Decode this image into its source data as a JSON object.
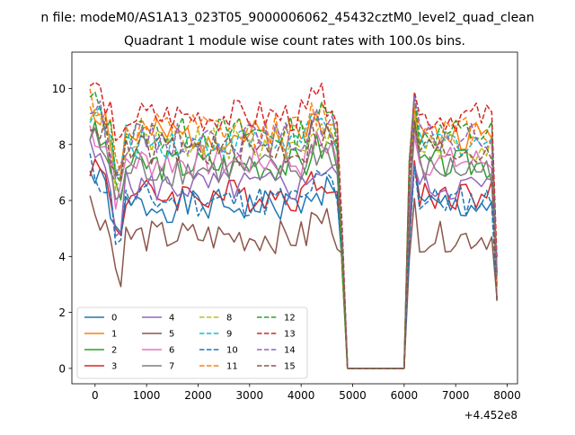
{
  "figure": {
    "suptitle": "n file: modeM0/AS1A13_023T05_9000006062_45432cztM0_level2_quad_clean",
    "title": "Quadrant 1 module wise count rates with 100.0s bins.",
    "x_offset_label": "+4.452e8"
  },
  "chart_data": {
    "type": "line",
    "title": "Quadrant 1 module wise count rates with 100.0s bins.",
    "xlabel": "",
    "ylabel": "",
    "x_offset": "+4.452e8",
    "xlim": [
      -450,
      8200
    ],
    "ylim": [
      -0.55,
      11.3
    ],
    "xticks": [
      0,
      1000,
      2000,
      3000,
      4000,
      5000,
      6000,
      7000,
      8000
    ],
    "yticks": [
      0,
      2,
      4,
      6,
      8,
      10
    ],
    "grid": false,
    "legend": {
      "placement": "lower-left",
      "columns": 4
    },
    "segments": [
      {
        "x_start": -100,
        "x_end": 4800,
        "step": 100
      },
      {
        "x_start": 4900,
        "x_end": 6000,
        "step": 100
      },
      {
        "x_start": 6100,
        "x_end": 7800,
        "step": 100
      }
    ],
    "series": [
      {
        "name": "0",
        "color": "#1f77b4",
        "dash": "solid",
        "level": 5.8,
        "seed": 1
      },
      {
        "name": "1",
        "color": "#ff7f0e",
        "dash": "solid",
        "level": 8.3,
        "seed": 2
      },
      {
        "name": "2",
        "color": "#2ca02c",
        "dash": "solid",
        "level": 7.3,
        "seed": 3
      },
      {
        "name": "3",
        "color": "#d62728",
        "dash": "solid",
        "level": 6.2,
        "seed": 4
      },
      {
        "name": "4",
        "color": "#9467bd",
        "dash": "solid",
        "level": 6.5,
        "seed": 5
      },
      {
        "name": "5",
        "color": "#8c564b",
        "dash": "solid",
        "level": 4.7,
        "seed": 6
      },
      {
        "name": "6",
        "color": "#e377c2",
        "dash": "solid",
        "level": 7.4,
        "seed": 7
      },
      {
        "name": "7",
        "color": "#7f7f7f",
        "dash": "solid",
        "level": 7.1,
        "seed": 8
      },
      {
        "name": "8",
        "color": "#bcbd22",
        "dash": "dashed",
        "level": 8.0,
        "seed": 9
      },
      {
        "name": "9",
        "color": "#17becf",
        "dash": "dashed",
        "level": 8.1,
        "seed": 10
      },
      {
        "name": "10",
        "color": "#1f77b4",
        "dash": "dashed",
        "level": 6.0,
        "seed": 11
      },
      {
        "name": "11",
        "color": "#ff7f0e",
        "dash": "dashed",
        "level": 8.5,
        "seed": 12
      },
      {
        "name": "12",
        "color": "#2ca02c",
        "dash": "dashed",
        "level": 8.4,
        "seed": 13
      },
      {
        "name": "13",
        "color": "#d62728",
        "dash": "dashed",
        "level": 9.0,
        "seed": 14
      },
      {
        "name": "14",
        "color": "#9467bd",
        "dash": "dashed",
        "level": 8.2,
        "seed": 15
      },
      {
        "name": "15",
        "color": "#8c564b",
        "dash": "dashed",
        "level": 7.8,
        "seed": 16
      }
    ]
  }
}
